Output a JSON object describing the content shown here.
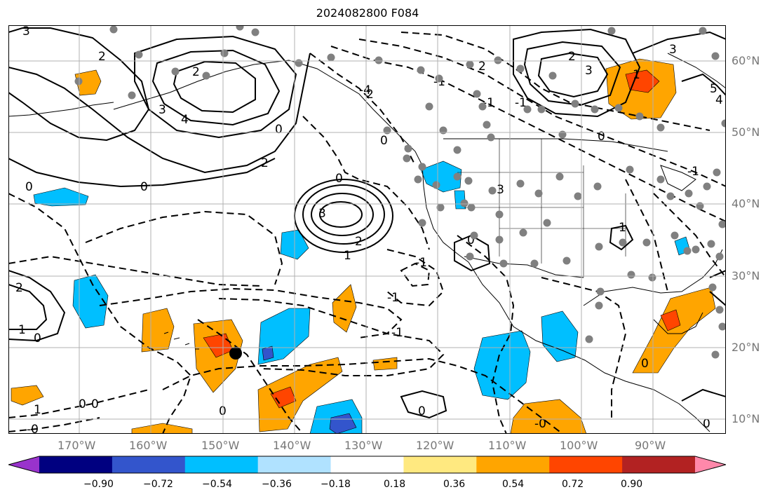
{
  "title": "2024082800 F084",
  "lon_labels": [
    "170°W",
    "160°W",
    "150°W",
    "140°W",
    "130°W",
    "120°W",
    "110°W",
    "100°W",
    "90°W"
  ],
  "lat_labels": [
    "60°N",
    "50°N",
    "40°N",
    "30°N",
    "20°N",
    "10°N"
  ],
  "colorbar": {
    "colors": [
      "#9933cc",
      "#000080",
      "#3355cc",
      "#00bfff",
      "#b0e2ff",
      "#ffffff",
      "#ffe980",
      "#ffa500",
      "#ff4500",
      "#b22222",
      "#ff88aa"
    ],
    "tick_labels": [
      "−0.90",
      "−0.72",
      "−0.54",
      "−0.36",
      "−0.18",
      "0.18",
      "0.36",
      "0.54",
      "0.72",
      "0.90"
    ]
  },
  "contour_labels": [
    "3",
    "2",
    "3",
    "4",
    "2",
    "2",
    "0",
    "0",
    "0",
    "3",
    "2",
    "1",
    "1",
    "0",
    "1",
    "2",
    "0",
    "-1",
    "3",
    "2",
    "3",
    "1",
    "5",
    "4",
    "0",
    "-1",
    "-1",
    "0",
    "0",
    "-1",
    "1",
    "0",
    "0",
    "-0",
    "-1",
    "-1",
    "-0",
    "0",
    "0",
    "2",
    "2",
    "-3",
    "0",
    "0",
    "-4",
    "-1"
  ],
  "map": {
    "land_color": "#ffffff",
    "grid_color": "#b0b0b0",
    "coast_color": "#000000",
    "station_marker_color": "#808080",
    "storm_marker": "filled-black-circle"
  }
}
